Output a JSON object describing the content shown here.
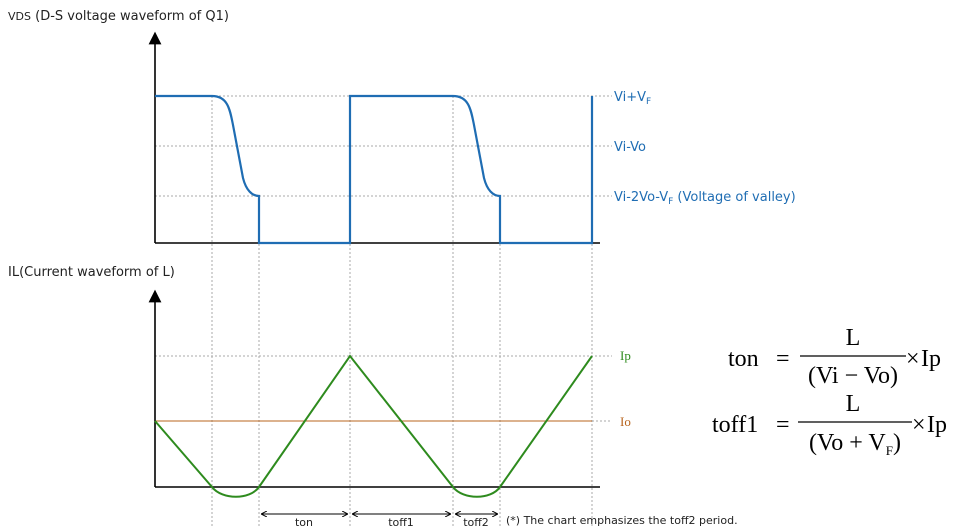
{
  "vds_title": {
    "main": "VDS",
    "rest": " (D-S voltage waveform of Q1)"
  },
  "il_title": "IL(Current waveform of L)",
  "vds_levels": {
    "high": {
      "a": "Vi+V",
      "sub": "F"
    },
    "mid": "Vi-Vo",
    "valley": {
      "a": "Vi-2Vo-V",
      "sub": "F",
      "b": " (Voltage of valley)"
    }
  },
  "il_levels": {
    "ip": "Ip",
    "io": "Io"
  },
  "periods": {
    "ton": "ton",
    "toff1": "toff1",
    "toff2": "toff2"
  },
  "note": "(*) The chart emphasizes the toff2 period.",
  "equations": {
    "ton": {
      "lhs": "ton",
      "eq": "=",
      "num": "L",
      "den": "(Vi − Vo)",
      "times": "×",
      "rhs": "Ip"
    },
    "toff1": {
      "lhs": "toff1",
      "eq": "=",
      "num": "L",
      "den_a": "(Vo + V",
      "den_sub": "F",
      "den_b": ")",
      "times": "×",
      "rhs": "Ip"
    }
  },
  "colors": {
    "vds": "#1f6db3",
    "il": "#2e8b1e",
    "io": "#b8641e",
    "grid": "#999999"
  }
}
